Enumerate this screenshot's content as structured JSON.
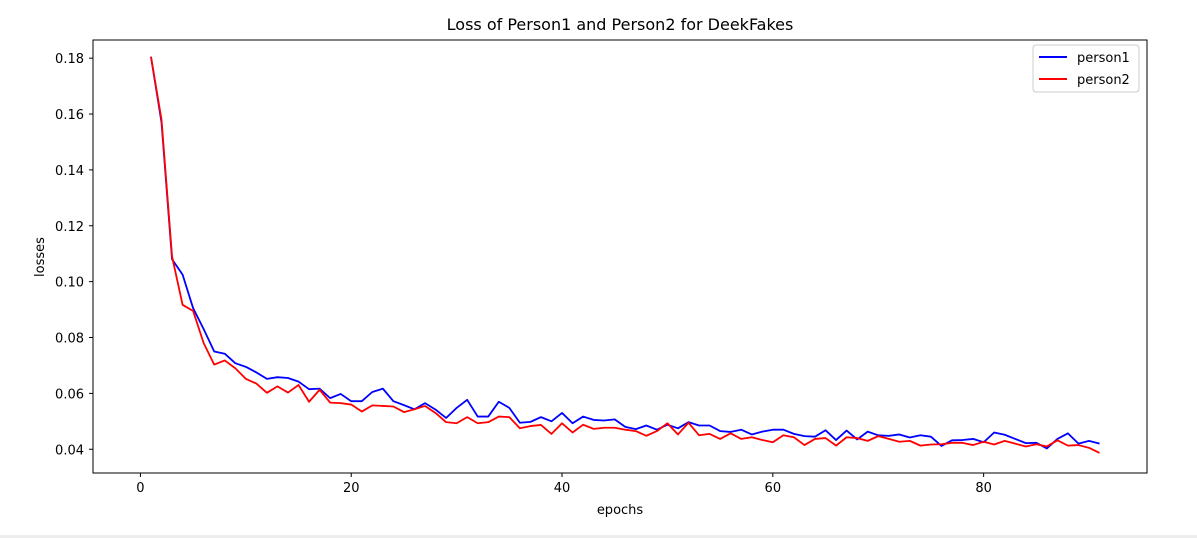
{
  "chart_data": {
    "type": "line",
    "title": "Loss of Person1 and Person2 for DeekFakes",
    "xlabel": "epochs",
    "ylabel": "losses",
    "xlim": [
      -4.5,
      95.5
    ],
    "ylim": [
      0.0315,
      0.1865
    ],
    "xticks": [
      0,
      20,
      40,
      60,
      80
    ],
    "yticks": [
      0.04,
      0.06,
      0.08,
      0.1,
      0.12,
      0.14,
      0.16,
      0.18
    ],
    "ytick_labels": [
      "0.04",
      "0.06",
      "0.08",
      "0.10",
      "0.12",
      "0.14",
      "0.16",
      "0.18"
    ],
    "grid": false,
    "legend_position": "upper right",
    "x": [
      1,
      2,
      3,
      4,
      5,
      6,
      7,
      8,
      9,
      10,
      11,
      12,
      13,
      14,
      15,
      16,
      17,
      18,
      19,
      20,
      21,
      22,
      23,
      24,
      25,
      26,
      27,
      28,
      29,
      30,
      31,
      32,
      33,
      34,
      35,
      36,
      37,
      38,
      39,
      40,
      41,
      42,
      43,
      44,
      45,
      46,
      47,
      48,
      49,
      50,
      51,
      52,
      53,
      54,
      55,
      56,
      57,
      58,
      59,
      60,
      61,
      62,
      63,
      64,
      65,
      66,
      67,
      68,
      69,
      70,
      71,
      72,
      73,
      74,
      75,
      76,
      77,
      78,
      79,
      80,
      81,
      82,
      83,
      84,
      85,
      86,
      87,
      88,
      89,
      90,
      91
    ],
    "series": [
      {
        "name": "person1",
        "color": "#0000ff",
        "values": [
          0.1805,
          0.157,
          0.108,
          0.1025,
          0.0905,
          0.083,
          0.075,
          0.0742,
          0.0708,
          0.0695,
          0.0675,
          0.0652,
          0.0658,
          0.0655,
          0.0642,
          0.0615,
          0.0617,
          0.0583,
          0.0598,
          0.0572,
          0.0572,
          0.0605,
          0.0617,
          0.0572,
          0.0558,
          0.0543,
          0.0565,
          0.0542,
          0.0512,
          0.0548,
          0.0577,
          0.0517,
          0.0517,
          0.057,
          0.0548,
          0.0495,
          0.0498,
          0.0515,
          0.05,
          0.053,
          0.0493,
          0.0517,
          0.0505,
          0.0503,
          0.0507,
          0.048,
          0.0472,
          0.0485,
          0.047,
          0.0488,
          0.0475,
          0.0497,
          0.0485,
          0.0485,
          0.0465,
          0.0462,
          0.047,
          0.0453,
          0.0463,
          0.047,
          0.047,
          0.0455,
          0.0447,
          0.0445,
          0.0468,
          0.0433,
          0.0467,
          0.0435,
          0.0463,
          0.045,
          0.0448,
          0.0453,
          0.0442,
          0.045,
          0.0445,
          0.0412,
          0.0432,
          0.0433,
          0.0437,
          0.0425,
          0.046,
          0.0452,
          0.0437,
          0.0422,
          0.0423,
          0.0403,
          0.0437,
          0.0457,
          0.042,
          0.043,
          0.042
        ]
      },
      {
        "name": "person2",
        "color": "#ff0000",
        "values": [
          0.1805,
          0.158,
          0.109,
          0.0917,
          0.0895,
          0.078,
          0.0703,
          0.0718,
          0.069,
          0.0652,
          0.0635,
          0.0602,
          0.0625,
          0.0603,
          0.063,
          0.057,
          0.0613,
          0.0567,
          0.0565,
          0.056,
          0.0535,
          0.0557,
          0.0555,
          0.0553,
          0.0533,
          0.0543,
          0.0555,
          0.053,
          0.0497,
          0.0493,
          0.0515,
          0.0493,
          0.0497,
          0.0517,
          0.0515,
          0.0475,
          0.0483,
          0.0487,
          0.0455,
          0.0493,
          0.046,
          0.0488,
          0.0473,
          0.0477,
          0.0477,
          0.047,
          0.0465,
          0.0448,
          0.0465,
          0.0493,
          0.0453,
          0.0495,
          0.045,
          0.0455,
          0.0437,
          0.0457,
          0.0437,
          0.0443,
          0.0433,
          0.0425,
          0.045,
          0.0443,
          0.0415,
          0.0437,
          0.044,
          0.0413,
          0.0443,
          0.044,
          0.043,
          0.0447,
          0.0437,
          0.0427,
          0.043,
          0.0413,
          0.0417,
          0.0418,
          0.0423,
          0.0423,
          0.0415,
          0.0427,
          0.0417,
          0.043,
          0.042,
          0.041,
          0.0418,
          0.041,
          0.0432,
          0.0413,
          0.0415,
          0.0405,
          0.0387
        ]
      }
    ]
  }
}
